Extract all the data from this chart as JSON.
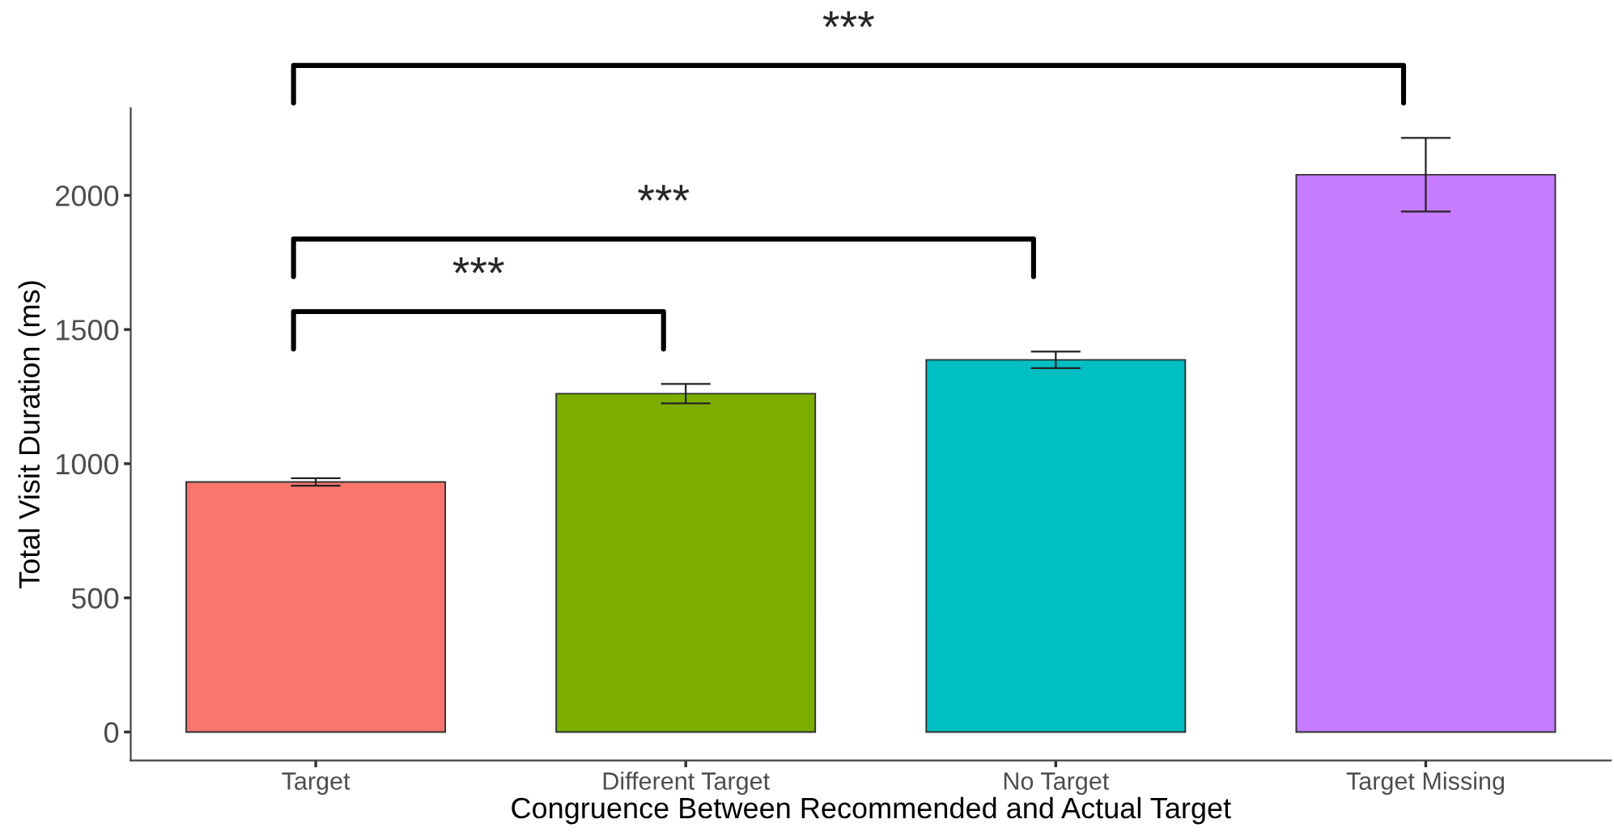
{
  "chart_data": {
    "type": "bar",
    "xlabel": "Congruence Between Recommended and Actual Target",
    "ylabel": "Total Visit Duration (ms)",
    "categories": [
      "Target",
      "Different Target",
      "No Target",
      "Target Missing"
    ],
    "values": [
      932,
      1261,
      1387,
      2077
    ],
    "errors": [
      14,
      36,
      31,
      137
    ],
    "colors": [
      "#f8766d",
      "#7cae00",
      "#00bfc4",
      "#c77cff"
    ],
    "ylim": [
      -106,
      2325
    ],
    "yticks": [
      0,
      500,
      1000,
      1500,
      2000
    ],
    "grid": false,
    "annotations": [
      "***",
      "***",
      "***"
    ]
  }
}
